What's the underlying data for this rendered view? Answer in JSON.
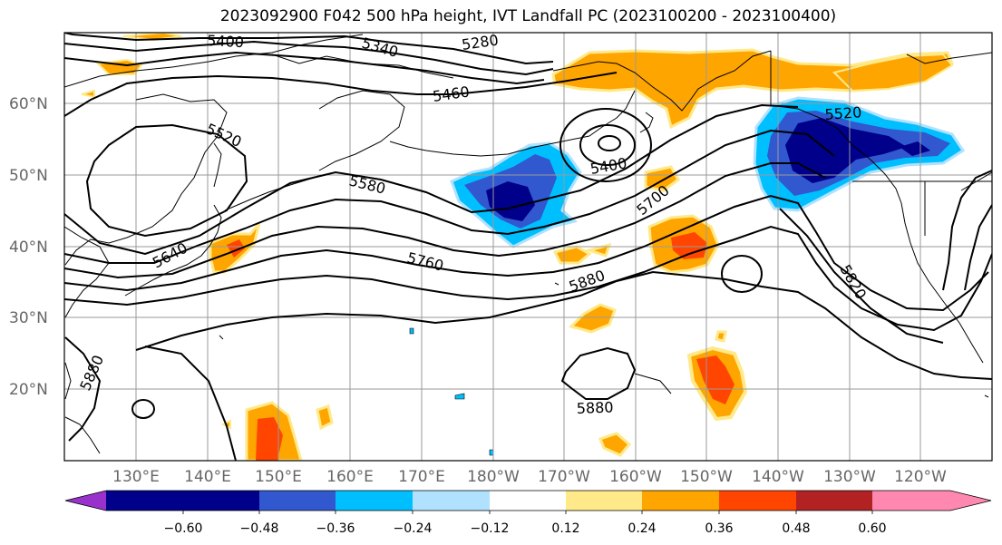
{
  "title": "2023092900 F042 500 hPa height, IVT Landfall PC (2023100200 - 2023100400)",
  "lat_labels": [
    "60°N",
    "50°N",
    "40°N",
    "30°N",
    "20°N"
  ],
  "lon_labels": [
    "130°E",
    "140°E",
    "150°E",
    "160°E",
    "170°E",
    "180°W",
    "170°W",
    "160°W",
    "150°W",
    "140°W",
    "130°W",
    "120°W"
  ],
  "contour_labels": [
    "5400",
    "5340",
    "5280",
    "5460",
    "5520",
    "5400",
    "5580",
    "5700",
    "5640",
    "5760",
    "5880",
    "5820",
    "5520",
    "5880",
    "5880"
  ],
  "colorbar": {
    "tick_labels": [
      "−0.60",
      "−0.48",
      "−0.36",
      "−0.24",
      "−0.12",
      "0.12",
      "0.24",
      "0.36",
      "0.48",
      "0.60"
    ],
    "colors": [
      "#9932cc",
      "#00008b",
      "#3158cf",
      "#00bfff",
      "#b0e2ff",
      "#ffffff",
      "#ffe988",
      "#ffa500",
      "#ff4500",
      "#b22222",
      "#ff88b0"
    ]
  }
}
